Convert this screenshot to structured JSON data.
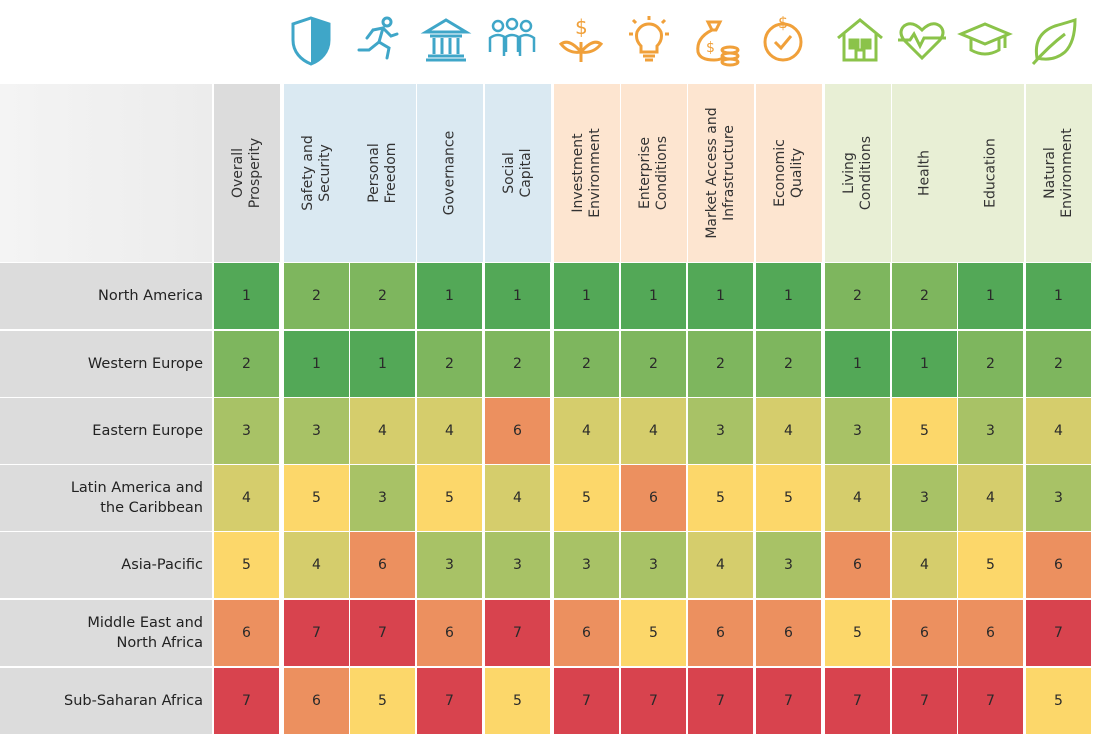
{
  "chart_data": {
    "type": "heatmap",
    "title": "",
    "columns": [
      {
        "label": "Overall\nProsperity",
        "group": "overall",
        "icon": ""
      },
      {
        "label": "Safety and\nSecurity",
        "group": "inclusive",
        "icon": "shield-icon"
      },
      {
        "label": "Personal\nFreedom",
        "group": "inclusive",
        "icon": "running-person-icon"
      },
      {
        "label": "Governance",
        "group": "inclusive",
        "icon": "government-building-icon"
      },
      {
        "label": "Social\nCapital",
        "group": "inclusive",
        "icon": "people-group-icon"
      },
      {
        "label": "Investment\nEnvironment",
        "group": "open",
        "icon": "money-plant-icon"
      },
      {
        "label": "Enterprise\nConditions",
        "group": "open",
        "icon": "lightbulb-icon"
      },
      {
        "label": "Market Access and\nInfrastructure",
        "group": "open",
        "icon": "money-bag-coins-icon"
      },
      {
        "label": "Economic\nQuality",
        "group": "open",
        "icon": "dollar-check-icon"
      },
      {
        "label": "Living\nConditions",
        "group": "empowered",
        "icon": "house-icon"
      },
      {
        "label": "Health",
        "group": "empowered",
        "icon": "heart-pulse-icon"
      },
      {
        "label": "Education",
        "group": "empowered",
        "icon": "graduation-cap-icon"
      },
      {
        "label": "Natural\nEnvironment",
        "group": "empowered",
        "icon": "leaf-icon"
      }
    ],
    "rows": [
      {
        "label": "North America",
        "values": [
          1,
          2,
          2,
          1,
          1,
          1,
          1,
          1,
          1,
          2,
          2,
          1,
          1
        ]
      },
      {
        "label": "Western Europe",
        "values": [
          2,
          1,
          1,
          2,
          2,
          2,
          2,
          2,
          2,
          1,
          1,
          2,
          2
        ]
      },
      {
        "label": "Eastern Europe",
        "values": [
          3,
          3,
          4,
          4,
          6,
          4,
          4,
          3,
          4,
          3,
          5,
          3,
          4
        ]
      },
      {
        "label": "Latin America and\nthe Caribbean",
        "values": [
          4,
          5,
          3,
          5,
          4,
          5,
          6,
          5,
          5,
          4,
          3,
          4,
          3
        ]
      },
      {
        "label": "Asia-Pacific",
        "values": [
          5,
          4,
          6,
          3,
          3,
          3,
          3,
          4,
          3,
          6,
          4,
          5,
          6
        ]
      },
      {
        "label": "Middle East and\nNorth Africa",
        "values": [
          6,
          7,
          7,
          6,
          7,
          6,
          5,
          6,
          6,
          5,
          6,
          6,
          7
        ]
      },
      {
        "label": "Sub-Saharan Africa",
        "values": [
          7,
          6,
          5,
          7,
          5,
          7,
          7,
          7,
          7,
          7,
          7,
          7,
          5
        ]
      }
    ],
    "rank_colors": {
      "1": "#53a857",
      "2": "#7eb65e",
      "3": "#a8c266",
      "4": "#d5cd6c",
      "5": "#fcd76a",
      "6": "#ec905f",
      "7": "#d8434e"
    },
    "group_colors": {
      "overall": "#dcdcdc",
      "inclusive": "#dae9f2",
      "open": "#fde5d0",
      "empowered": "#e8efd5"
    },
    "icon_colors": {
      "inclusive": "#3fa6c8",
      "open": "#f0a03a",
      "empowered": "#8bc34a"
    }
  }
}
